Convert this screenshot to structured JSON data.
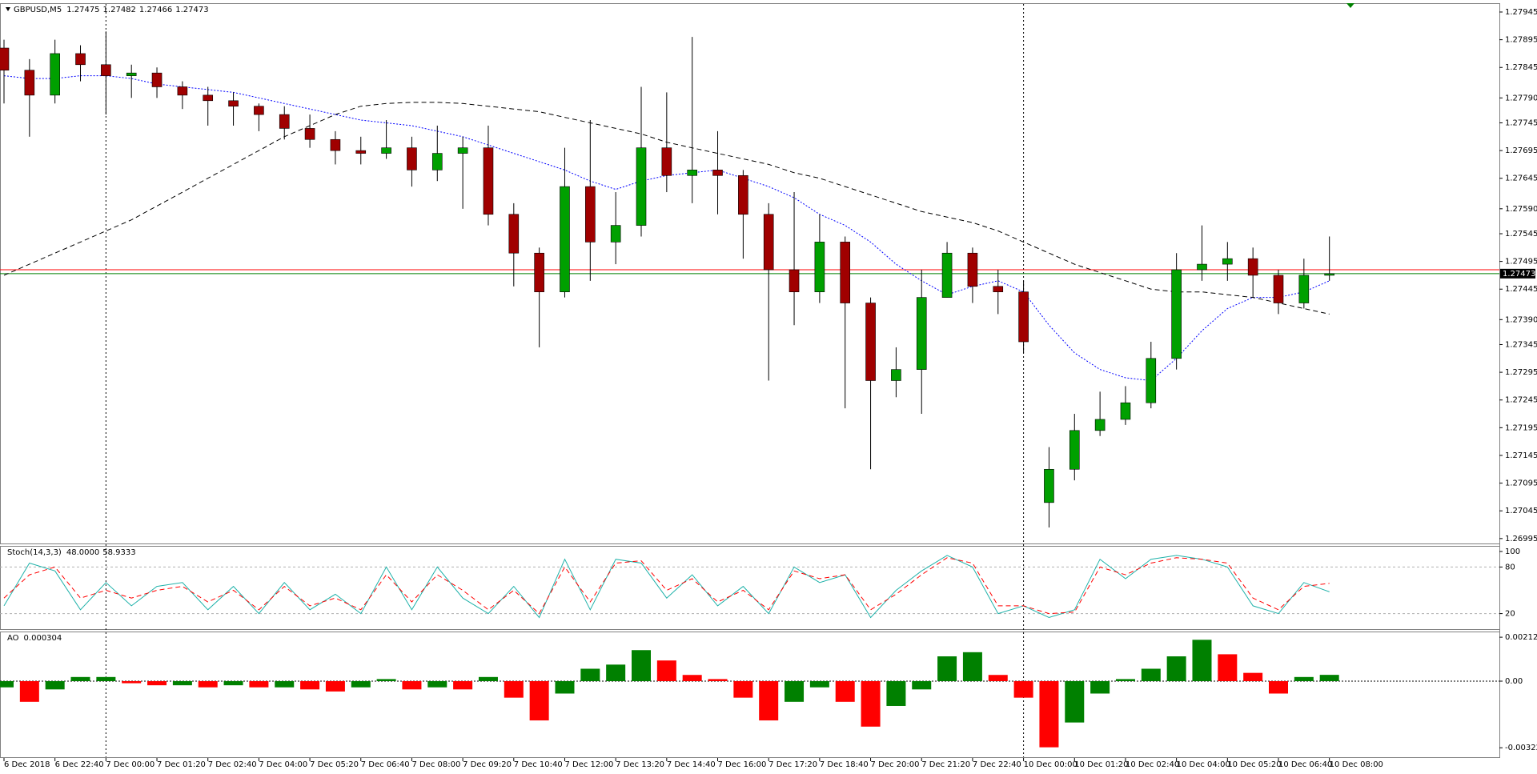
{
  "chart_data": [
    {
      "type": "candlestick",
      "title": "GBPUSD,M5",
      "header_values": [
        1.27475,
        1.27482,
        1.27466,
        1.27473
      ],
      "open": [
        1.2788,
        1.2784,
        1.27795,
        1.2787,
        1.2785,
        1.2783,
        1.27835,
        1.2781,
        1.27795,
        1.27785,
        1.27775,
        1.2776,
        1.27735,
        1.27715,
        1.27695,
        1.2769,
        1.277,
        1.2766,
        1.2769,
        1.277,
        1.2758,
        1.2751,
        1.2744,
        1.2763,
        1.2753,
        1.2756,
        1.277,
        1.2765,
        1.2766,
        1.2765,
        1.2758,
        1.2748,
        1.2744,
        1.2753,
        1.2742,
        1.2728,
        1.273,
        1.2743,
        1.2751,
        1.2745,
        1.2744,
        1.2706,
        1.2712,
        1.2719,
        1.2721,
        1.2724,
        1.2732,
        1.2748,
        1.2749,
        1.275,
        1.2747,
        1.2742,
        1.2747
      ],
      "high": [
        1.27895,
        1.2786,
        1.27895,
        1.27885,
        1.2791,
        1.2785,
        1.27845,
        1.2782,
        1.2781,
        1.278,
        1.2778,
        1.27775,
        1.2776,
        1.2773,
        1.2772,
        1.2775,
        1.2772,
        1.2774,
        1.2772,
        1.2774,
        1.276,
        1.2752,
        1.277,
        1.2775,
        1.2762,
        1.2781,
        1.278,
        1.279,
        1.2773,
        1.2766,
        1.276,
        1.2762,
        1.2758,
        1.2754,
        1.2743,
        1.2734,
        1.2748,
        1.2753,
        1.2752,
        1.2748,
        1.2746,
        1.2716,
        1.2722,
        1.2726,
        1.2727,
        1.2735,
        1.2751,
        1.2756,
        1.2753,
        1.2752,
        1.2748,
        1.275,
        1.2754
      ],
      "low": [
        1.2778,
        1.2772,
        1.2778,
        1.2782,
        1.2776,
        1.2779,
        1.2779,
        1.2777,
        1.2774,
        1.2774,
        1.2773,
        1.27715,
        1.277,
        1.2767,
        1.2767,
        1.2768,
        1.2763,
        1.2764,
        1.2759,
        1.2756,
        1.2745,
        1.2734,
        1.2743,
        1.2746,
        1.2749,
        1.2754,
        1.2762,
        1.276,
        1.2758,
        1.275,
        1.2728,
        1.2738,
        1.2742,
        1.2723,
        1.2712,
        1.2725,
        1.2722,
        1.2743,
        1.2742,
        1.274,
        1.2733,
        1.27015,
        1.271,
        1.2718,
        1.272,
        1.2723,
        1.273,
        1.2746,
        1.2746,
        1.2743,
        1.274,
        1.2741,
        1.2746
      ],
      "close": [
        1.2784,
        1.27795,
        1.2787,
        1.2785,
        1.2783,
        1.27835,
        1.2781,
        1.27795,
        1.27785,
        1.27775,
        1.2776,
        1.27735,
        1.27715,
        1.27695,
        1.2769,
        1.277,
        1.2766,
        1.2769,
        1.277,
        1.2758,
        1.2751,
        1.2744,
        1.2763,
        1.2753,
        1.2756,
        1.277,
        1.2765,
        1.2766,
        1.2765,
        1.2758,
        1.2748,
        1.2744,
        1.2753,
        1.2742,
        1.2728,
        1.273,
        1.2743,
        1.2751,
        1.2745,
        1.2744,
        1.2735,
        1.2712,
        1.2719,
        1.2721,
        1.2724,
        1.2732,
        1.2748,
        1.2749,
        1.275,
        1.2747,
        1.2742,
        1.2747,
        1.27473
      ],
      "up_color": "#00a000",
      "down_color": "#a00000",
      "overlays": [
        {
          "color": "#0000ff",
          "style": "dotted",
          "values": [
            1.2783,
            1.27825,
            1.27825,
            1.2783,
            1.2783,
            1.27825,
            1.27815,
            1.2781,
            1.27805,
            1.278,
            1.2779,
            1.2778,
            1.2777,
            1.2776,
            1.2775,
            1.27745,
            1.2774,
            1.2773,
            1.2772,
            1.27705,
            1.2769,
            1.27675,
            1.2766,
            1.2764,
            1.27625,
            1.2764,
            1.2765,
            1.27655,
            1.2766,
            1.27645,
            1.2763,
            1.2761,
            1.2758,
            1.2756,
            1.2753,
            1.2749,
            1.2746,
            1.27435,
            1.2745,
            1.2746,
            1.2744,
            1.2738,
            1.2733,
            1.273,
            1.27285,
            1.2728,
            1.2732,
            1.2737,
            1.2741,
            1.2743,
            1.2743,
            1.2744,
            1.2746
          ]
        },
        {
          "color": "#000000",
          "style": "dashed",
          "values": [
            1.2747,
            1.2749,
            1.2751,
            1.2753,
            1.2755,
            1.2757,
            1.27595,
            1.2762,
            1.27645,
            1.2767,
            1.27695,
            1.2772,
            1.2774,
            1.2776,
            1.27775,
            1.2778,
            1.27782,
            1.27782,
            1.2778,
            1.27775,
            1.2777,
            1.27765,
            1.27755,
            1.27745,
            1.27735,
            1.27725,
            1.2771,
            1.277,
            1.2769,
            1.2768,
            1.2767,
            1.27655,
            1.27645,
            1.2763,
            1.27615,
            1.276,
            1.27585,
            1.27575,
            1.27565,
            1.2755,
            1.2753,
            1.2751,
            1.2749,
            1.27475,
            1.2746,
            1.27445,
            1.2744,
            1.2744,
            1.27435,
            1.2743,
            1.2742,
            1.2741,
            1.274
          ]
        }
      ],
      "price_lines": [
        {
          "value": 1.2748,
          "color": "#ff0000"
        },
        {
          "value": 1.27473,
          "color": "#008000"
        }
      ],
      "ylim": [
        1.26989,
        1.27958
      ],
      "yticks": [
        1.27945,
        1.27895,
        1.27845,
        {
          "value": 1.2779,
          "label": "1.27790"
        },
        1.27745,
        1.27695,
        1.27645,
        {
          "value": 1.2759,
          "label": "1.27590"
        },
        1.27545,
        1.27495,
        1.27445,
        {
          "value": 1.2739,
          "label": "1.27390"
        },
        1.27345,
        1.27295,
        1.27245,
        1.27195,
        1.27145,
        1.27095,
        1.27045,
        1.26995
      ],
      "xticks": [
        {
          "value": 0,
          "label": "6 Dec 2018"
        },
        {
          "value": 2,
          "label": "6 Dec 22:40"
        },
        {
          "value": 4,
          "label": "7 Dec 00:00"
        },
        {
          "value": 6,
          "label": "7 Dec 01:20"
        },
        {
          "value": 8,
          "label": "7 Dec 02:40"
        },
        {
          "value": 10,
          "label": "7 Dec 04:00"
        },
        {
          "value": 12,
          "label": "7 Dec 05:20"
        },
        {
          "value": 14,
          "label": "7 Dec 06:40"
        },
        {
          "value": 16,
          "label": "7 Dec 08:00"
        },
        {
          "value": 18,
          "label": "7 Dec 09:20"
        },
        {
          "value": 20,
          "label": "7 Dec 10:40"
        },
        {
          "value": 22,
          "label": "7 Dec 12:00"
        },
        {
          "value": 24,
          "label": "7 Dec 13:20"
        },
        {
          "value": 26,
          "label": "7 Dec 14:40"
        },
        {
          "value": 28,
          "label": "7 Dec 16:00"
        },
        {
          "value": 30,
          "label": "7 Dec 17:20"
        },
        {
          "value": 32,
          "label": "7 Dec 18:40"
        },
        {
          "value": 34,
          "label": "7 Dec 20:00"
        },
        {
          "value": 36,
          "label": "7 Dec 21:20"
        },
        {
          "value": 38,
          "label": "7 Dec 22:40"
        },
        {
          "value": 40,
          "label": "10 Dec 00:00"
        },
        {
          "value": 42,
          "label": "10 Dec 01:20"
        },
        {
          "value": 44,
          "label": "10 Dec 02:40"
        },
        {
          "value": 46,
          "label": "10 Dec 04:00"
        },
        {
          "value": 48,
          "label": "10 Dec 05:20"
        },
        {
          "value": 50,
          "label": "10 Dec 06:40"
        },
        {
          "value": 52,
          "label": "10 Dec 08:00"
        }
      ]
    },
    {
      "type": "line",
      "title": "Stoch(14,3,3)",
      "header_values": [
        {
          "value": 48,
          "label": "48.0000"
        },
        58.9333
      ],
      "series": [
        {
          "color": "#20b2aa",
          "style": "solid",
          "values": [
            30,
            85,
            75,
            25,
            60,
            30,
            55,
            60,
            25,
            55,
            20,
            60,
            25,
            45,
            20,
            80,
            25,
            80,
            40,
            20,
            55,
            15,
            90,
            25,
            90,
            85,
            40,
            70,
            30,
            55,
            20,
            80,
            60,
            70,
            15,
            50,
            75,
            95,
            80,
            20,
            30,
            15,
            25,
            90,
            65,
            90,
            95,
            90,
            80,
            30,
            20,
            60,
            48
          ]
        },
        {
          "color": "#ff0000",
          "style": "dashed",
          "values": [
            40,
            70,
            80,
            40,
            50,
            40,
            50,
            55,
            35,
            50,
            25,
            55,
            30,
            40,
            25,
            70,
            35,
            70,
            50,
            25,
            50,
            20,
            80,
            35,
            85,
            88,
            50,
            65,
            35,
            50,
            25,
            75,
            65,
            70,
            25,
            45,
            70,
            92,
            85,
            30,
            30,
            20,
            22,
            80,
            70,
            85,
            92,
            90,
            85,
            40,
            25,
            55,
            58.9333
          ]
        }
      ],
      "levels": [
        80,
        20
      ],
      "ylim": [
        0,
        100
      ],
      "yticks": [
        100,
        80,
        20
      ]
    },
    {
      "type": "histogram",
      "title": "AO",
      "header_values": [
        0.000304
      ],
      "values": [
        -0.0003,
        -0.001,
        -0.0004,
        0.0002,
        0.0002,
        -0.0001,
        -0.0002,
        -0.0002,
        -0.0003,
        -0.0002,
        -0.0003,
        -0.0003,
        -0.0004,
        -0.0005,
        -0.0003,
        0.0001,
        -0.0004,
        -0.0003,
        -0.0004,
        0.0002,
        -0.0008,
        -0.0019,
        -0.0006,
        0.0006,
        0.0008,
        0.0015,
        0.001,
        0.0003,
        0.0001,
        -0.0008,
        -0.0019,
        -0.001,
        -0.0003,
        -0.001,
        -0.0022,
        -0.0012,
        -0.0004,
        0.0012,
        0.0014,
        0.0003,
        -0.0008,
        -0.0032,
        -0.002,
        -0.0006,
        0.0001,
        0.0006,
        0.0012,
        0.002,
        0.0013,
        0.0004,
        -0.0006,
        0.0002,
        0.000304
      ],
      "up_color": "#008000",
      "down_color": "#ff0000",
      "levels": [
        0
      ],
      "ylim": [
        -0.00364,
        0.0024
      ],
      "yticks": [
        0.002125,
        {
          "value": 0,
          "label": "0.00"
        },
        -0.003223
      ]
    }
  ]
}
